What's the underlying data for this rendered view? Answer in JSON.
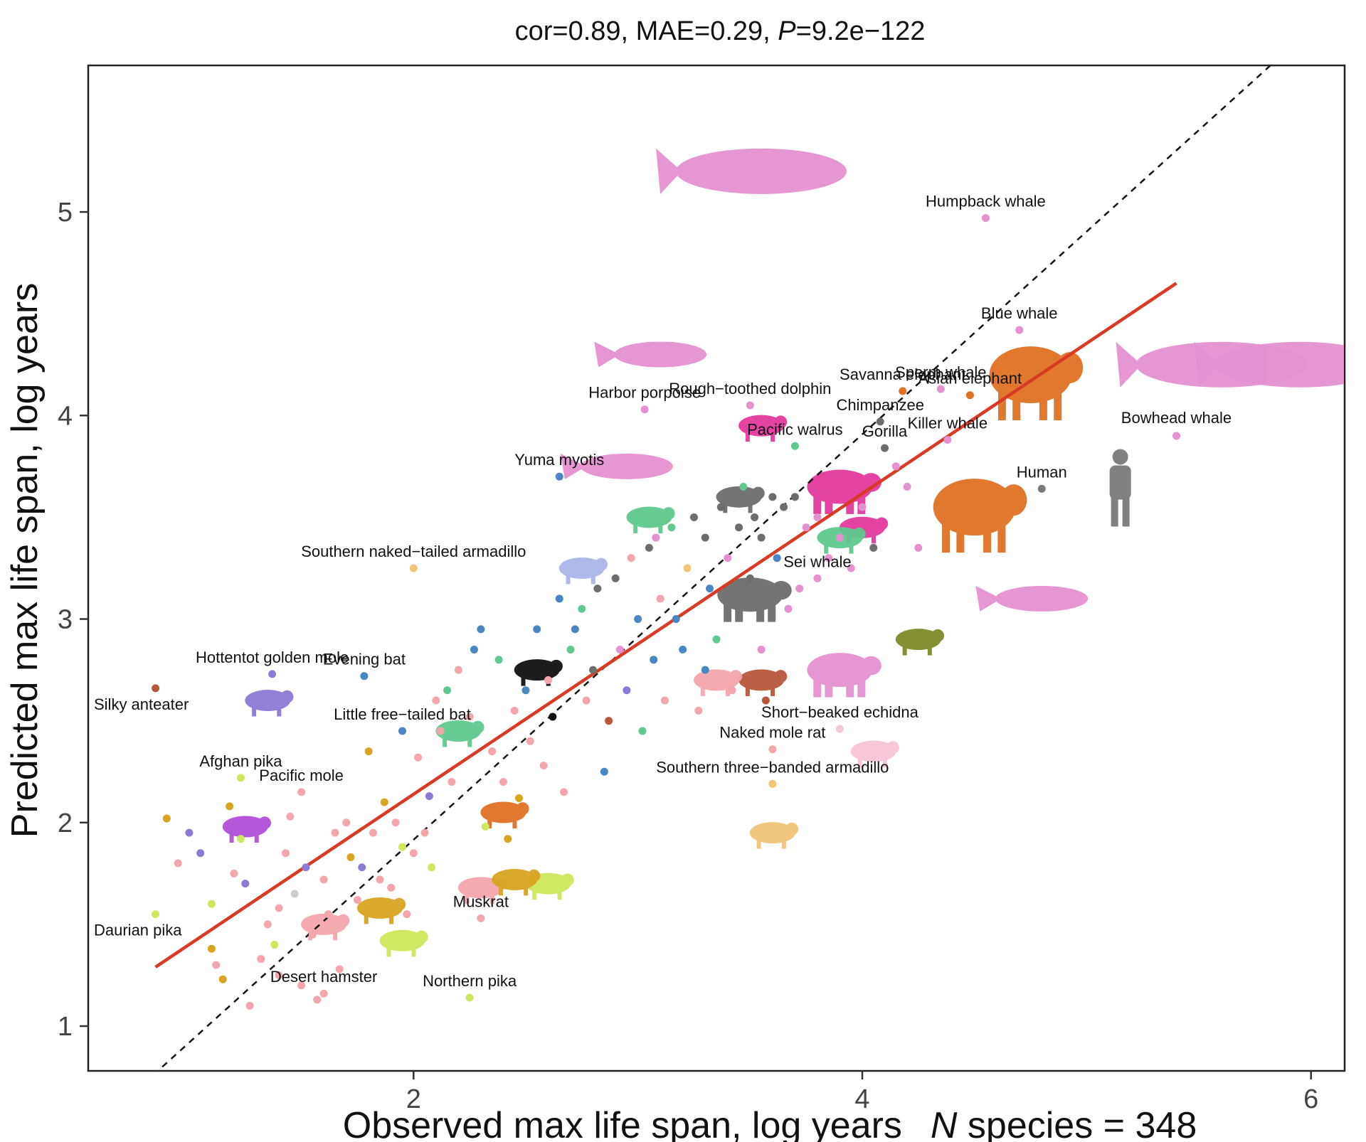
{
  "chart_data": {
    "type": "scatter",
    "title_stats": "cor=0.89, MAE=0.29, ",
    "title_p_symbol": "P",
    "title_p_value": "=9.2e−122",
    "xlabel": "Observed max life span, log years",
    "xlabel_suffix_n": "N",
    "xlabel_suffix": " species = 348",
    "ylabel": "Predicted max life span, log years",
    "xlim": [
      0.55,
      6.15
    ],
    "ylim": [
      0.78,
      5.72
    ],
    "x_ticks": [
      2,
      4,
      6
    ],
    "y_ticks": [
      1,
      2,
      3,
      4,
      5
    ],
    "grid": false,
    "identity_line": {
      "style": "dashed",
      "color": "#111111",
      "from": [
        0.8,
        0.72
      ],
      "to": [
        6.0,
        5.9
      ]
    },
    "fit_line": {
      "color": "#d93a26",
      "from": [
        0.85,
        1.29
      ],
      "to": [
        5.4,
        4.65
      ]
    },
    "labeled_points": [
      {
        "label": "Humpback whale",
        "x": 4.55,
        "y": 4.97,
        "color": "#e591cf"
      },
      {
        "label": "Blue whale",
        "x": 4.7,
        "y": 4.42,
        "color": "#e591cf"
      },
      {
        "label": "Sperm whale",
        "x": 4.35,
        "y": 4.13,
        "color": "#e591cf"
      },
      {
        "label": "Asian elephant",
        "x": 4.48,
        "y": 4.1,
        "color": "#e07125"
      },
      {
        "label": "Savanna elephant",
        "x": 4.18,
        "y": 4.12,
        "color": "#e07125"
      },
      {
        "label": "Bowhead whale",
        "x": 5.4,
        "y": 3.9,
        "color": "#e591cf"
      },
      {
        "label": "Killer whale",
        "x": 4.38,
        "y": 3.88,
        "color": "#e591cf"
      },
      {
        "label": "Human",
        "x": 4.8,
        "y": 3.64,
        "color": "#7a7a7a"
      },
      {
        "label": "Chimpanzee",
        "x": 4.08,
        "y": 3.97,
        "color": "#6d6d6d"
      },
      {
        "label": "Gorilla",
        "x": 4.1,
        "y": 3.84,
        "color": "#6d6d6d"
      },
      {
        "label": "Rough−toothed dolphin",
        "x": 3.5,
        "y": 4.05,
        "color": "#e591cf"
      },
      {
        "label": "Harbor porpoise",
        "x": 3.03,
        "y": 4.03,
        "color": "#e591cf"
      },
      {
        "label": "Pacific walrus",
        "x": 3.7,
        "y": 3.85,
        "color": "#5fc98f"
      },
      {
        "label": "Yuma myotis",
        "x": 2.65,
        "y": 3.7,
        "color": "#4a86c1"
      },
      {
        "label": "Southern naked−tailed armadillo",
        "x": 2.0,
        "y": 3.25,
        "color": "#f2c478"
      },
      {
        "label": "Sei whale",
        "x": 3.8,
        "y": 3.2,
        "color": "#e591cf"
      },
      {
        "label": "Hottentot golden mole",
        "x": 1.37,
        "y": 2.73,
        "color": "#8d7ad6"
      },
      {
        "label": "Evening bat",
        "x": 1.78,
        "y": 2.72,
        "color": "#4a86c1"
      },
      {
        "label": "Silky anteater",
        "x": 0.85,
        "y": 2.66,
        "color": "#b8583a"
      },
      {
        "label": "Little free−tailed bat",
        "x": 1.95,
        "y": 2.45,
        "color": "#4a86c1"
      },
      {
        "label": "Short−beaked echidna",
        "x": 3.9,
        "y": 2.46,
        "color": "#f5c5d8"
      },
      {
        "label": "Naked mole rat",
        "x": 3.6,
        "y": 2.36,
        "color": "#f4a6ac"
      },
      {
        "label": "Southern three−banded armadillo",
        "x": 3.6,
        "y": 2.19,
        "color": "#f2c478"
      },
      {
        "label": "Afghan pika",
        "x": 1.23,
        "y": 2.22,
        "color": "#cde85c"
      },
      {
        "label": "Pacific mole",
        "x": 1.5,
        "y": 2.15,
        "color": "#f4a6ac"
      },
      {
        "label": "Daurian pika",
        "x": 0.85,
        "y": 1.55,
        "color": "#cde85c"
      },
      {
        "label": "Muskrat",
        "x": 2.3,
        "y": 1.53,
        "color": "#f4a6ac"
      },
      {
        "label": "Desert hamster",
        "x": 1.6,
        "y": 1.16,
        "color": "#f4a6ac"
      },
      {
        "label": "Northern pika",
        "x": 2.25,
        "y": 1.14,
        "color": "#cde85c"
      }
    ],
    "unlabeled_points": [
      {
        "x": 0.9,
        "y": 2.02,
        "color": "#d9a520"
      },
      {
        "x": 0.95,
        "y": 1.8,
        "color": "#f4a6ac"
      },
      {
        "x": 1.0,
        "y": 1.95,
        "color": "#8d7ad6"
      },
      {
        "x": 1.05,
        "y": 1.85,
        "color": "#8d7ad6"
      },
      {
        "x": 1.1,
        "y": 1.6,
        "color": "#cde85c"
      },
      {
        "x": 1.1,
        "y": 1.38,
        "color": "#d9a520"
      },
      {
        "x": 1.12,
        "y": 1.3,
        "color": "#f4a6ac"
      },
      {
        "x": 1.15,
        "y": 1.23,
        "color": "#d9a520"
      },
      {
        "x": 1.18,
        "y": 2.08,
        "color": "#d9a520"
      },
      {
        "x": 1.2,
        "y": 1.75,
        "color": "#f4a6ac"
      },
      {
        "x": 1.23,
        "y": 1.92,
        "color": "#cde85c"
      },
      {
        "x": 1.25,
        "y": 1.7,
        "color": "#8d7ad6"
      },
      {
        "x": 1.27,
        "y": 1.1,
        "color": "#f4a6ac"
      },
      {
        "x": 1.32,
        "y": 1.33,
        "color": "#f4a6ac"
      },
      {
        "x": 1.35,
        "y": 1.5,
        "color": "#f4a6ac"
      },
      {
        "x": 1.38,
        "y": 1.4,
        "color": "#cde85c"
      },
      {
        "x": 1.4,
        "y": 1.58,
        "color": "#f4a6ac"
      },
      {
        "x": 1.4,
        "y": 1.25,
        "color": "#f4a6ac"
      },
      {
        "x": 1.43,
        "y": 1.85,
        "color": "#f4a6ac"
      },
      {
        "x": 1.45,
        "y": 2.03,
        "color": "#f4a6ac"
      },
      {
        "x": 1.47,
        "y": 1.65,
        "color": "#cccccc"
      },
      {
        "x": 1.5,
        "y": 1.2,
        "color": "#f4a6ac"
      },
      {
        "x": 1.52,
        "y": 1.78,
        "color": "#8d7ad6"
      },
      {
        "x": 1.55,
        "y": 1.45,
        "color": "#f4a6ac"
      },
      {
        "x": 1.57,
        "y": 1.13,
        "color": "#f4a6ac"
      },
      {
        "x": 1.6,
        "y": 1.72,
        "color": "#f4a6ac"
      },
      {
        "x": 1.62,
        "y": 1.55,
        "color": "#f4a6ac"
      },
      {
        "x": 1.65,
        "y": 1.95,
        "color": "#f4a6ac"
      },
      {
        "x": 1.67,
        "y": 1.28,
        "color": "#f4a6ac"
      },
      {
        "x": 1.7,
        "y": 2.0,
        "color": "#f4a6ac"
      },
      {
        "x": 1.72,
        "y": 1.83,
        "color": "#d9a520"
      },
      {
        "x": 1.75,
        "y": 1.62,
        "color": "#f4a6ac"
      },
      {
        "x": 1.77,
        "y": 1.78,
        "color": "#8d7ad6"
      },
      {
        "x": 1.8,
        "y": 2.35,
        "color": "#d9a520"
      },
      {
        "x": 1.82,
        "y": 1.95,
        "color": "#f4a6ac"
      },
      {
        "x": 1.85,
        "y": 1.72,
        "color": "#f4a6ac"
      },
      {
        "x": 1.87,
        "y": 2.1,
        "color": "#d9a520"
      },
      {
        "x": 1.9,
        "y": 1.68,
        "color": "#f4a6ac"
      },
      {
        "x": 1.92,
        "y": 2.0,
        "color": "#f4a6ac"
      },
      {
        "x": 1.95,
        "y": 1.88,
        "color": "#cde85c"
      },
      {
        "x": 1.97,
        "y": 1.55,
        "color": "#f4a6ac"
      },
      {
        "x": 2.0,
        "y": 1.85,
        "color": "#f4a6ac"
      },
      {
        "x": 2.02,
        "y": 2.32,
        "color": "#f4a6ac"
      },
      {
        "x": 2.05,
        "y": 1.95,
        "color": "#f4a6ac"
      },
      {
        "x": 2.07,
        "y": 2.13,
        "color": "#8d7ad6"
      },
      {
        "x": 2.08,
        "y": 1.78,
        "color": "#cde85c"
      },
      {
        "x": 2.1,
        "y": 2.6,
        "color": "#f4a6ac"
      },
      {
        "x": 2.12,
        "y": 2.45,
        "color": "#f4a6ac"
      },
      {
        "x": 2.15,
        "y": 2.65,
        "color": "#5fc98f"
      },
      {
        "x": 2.17,
        "y": 2.2,
        "color": "#f4a6ac"
      },
      {
        "x": 2.2,
        "y": 2.75,
        "color": "#f4a6ac"
      },
      {
        "x": 2.25,
        "y": 2.52,
        "color": "#f4a6ac"
      },
      {
        "x": 2.27,
        "y": 2.85,
        "color": "#4a86c1"
      },
      {
        "x": 2.3,
        "y": 2.95,
        "color": "#4a86c1"
      },
      {
        "x": 2.32,
        "y": 1.98,
        "color": "#cde85c"
      },
      {
        "x": 2.35,
        "y": 2.35,
        "color": "#f4a6ac"
      },
      {
        "x": 2.38,
        "y": 2.8,
        "color": "#5fc98f"
      },
      {
        "x": 2.4,
        "y": 2.2,
        "color": "#f4a6ac"
      },
      {
        "x": 2.42,
        "y": 1.92,
        "color": "#d9a520"
      },
      {
        "x": 2.45,
        "y": 2.55,
        "color": "#f4a6ac"
      },
      {
        "x": 2.47,
        "y": 2.12,
        "color": "#d9a520"
      },
      {
        "x": 2.5,
        "y": 2.65,
        "color": "#4a86c1"
      },
      {
        "x": 2.52,
        "y": 2.4,
        "color": "#f4a6ac"
      },
      {
        "x": 2.55,
        "y": 2.95,
        "color": "#4a86c1"
      },
      {
        "x": 2.58,
        "y": 2.28,
        "color": "#f4a6ac"
      },
      {
        "x": 2.6,
        "y": 2.7,
        "color": "#f4a6ac"
      },
      {
        "x": 2.62,
        "y": 2.52,
        "color": "#111111"
      },
      {
        "x": 2.65,
        "y": 3.1,
        "color": "#4a86c1"
      },
      {
        "x": 2.67,
        "y": 2.15,
        "color": "#f4a6ac"
      },
      {
        "x": 2.7,
        "y": 2.85,
        "color": "#5fc98f"
      },
      {
        "x": 2.72,
        "y": 2.95,
        "color": "#4a86c1"
      },
      {
        "x": 2.75,
        "y": 3.05,
        "color": "#5fc98f"
      },
      {
        "x": 2.77,
        "y": 2.6,
        "color": "#f4a6ac"
      },
      {
        "x": 2.8,
        "y": 2.75,
        "color": "#6d6d6d"
      },
      {
        "x": 2.82,
        "y": 3.15,
        "color": "#6d6d6d"
      },
      {
        "x": 2.85,
        "y": 2.25,
        "color": "#4a86c1"
      },
      {
        "x": 2.87,
        "y": 2.5,
        "color": "#b8583a"
      },
      {
        "x": 2.9,
        "y": 3.2,
        "color": "#6d6d6d"
      },
      {
        "x": 2.92,
        "y": 2.85,
        "color": "#e591cf"
      },
      {
        "x": 2.95,
        "y": 2.65,
        "color": "#8d7ad6"
      },
      {
        "x": 2.97,
        "y": 3.3,
        "color": "#f4a6ac"
      },
      {
        "x": 3.0,
        "y": 3.0,
        "color": "#4a86c1"
      },
      {
        "x": 3.02,
        "y": 2.45,
        "color": "#5fc98f"
      },
      {
        "x": 3.05,
        "y": 3.35,
        "color": "#6d6d6d"
      },
      {
        "x": 3.07,
        "y": 2.8,
        "color": "#4a86c1"
      },
      {
        "x": 3.1,
        "y": 3.1,
        "color": "#f4a6ac"
      },
      {
        "x": 3.12,
        "y": 2.6,
        "color": "#f4a6ac"
      },
      {
        "x": 3.15,
        "y": 3.45,
        "color": "#5fc98f"
      },
      {
        "x": 3.17,
        "y": 3.0,
        "color": "#4a86c1"
      },
      {
        "x": 3.2,
        "y": 2.85,
        "color": "#4a86c1"
      },
      {
        "x": 3.22,
        "y": 3.25,
        "color": "#f2c478"
      },
      {
        "x": 3.25,
        "y": 3.5,
        "color": "#6d6d6d"
      },
      {
        "x": 3.27,
        "y": 2.55,
        "color": "#f4a6ac"
      },
      {
        "x": 3.3,
        "y": 3.4,
        "color": "#6d6d6d"
      },
      {
        "x": 3.32,
        "y": 3.15,
        "color": "#4a86c1"
      },
      {
        "x": 3.35,
        "y": 2.9,
        "color": "#5fc98f"
      },
      {
        "x": 3.37,
        "y": 3.55,
        "color": "#6d6d6d"
      },
      {
        "x": 3.4,
        "y": 3.3,
        "color": "#e591cf"
      },
      {
        "x": 3.42,
        "y": 2.65,
        "color": "#f4a6ac"
      },
      {
        "x": 3.45,
        "y": 3.45,
        "color": "#6d6d6d"
      },
      {
        "x": 3.47,
        "y": 3.65,
        "color": "#5fc98f"
      },
      {
        "x": 3.5,
        "y": 3.2,
        "color": "#6d6d6d"
      },
      {
        "x": 3.52,
        "y": 3.5,
        "color": "#6d6d6d"
      },
      {
        "x": 3.55,
        "y": 3.4,
        "color": "#6d6d6d"
      },
      {
        "x": 3.57,
        "y": 2.6,
        "color": "#b8583a"
      },
      {
        "x": 3.6,
        "y": 3.6,
        "color": "#6d6d6d"
      },
      {
        "x": 3.62,
        "y": 3.3,
        "color": "#4a86c1"
      },
      {
        "x": 3.65,
        "y": 3.55,
        "color": "#6d6d6d"
      },
      {
        "x": 3.67,
        "y": 3.05,
        "color": "#e591cf"
      },
      {
        "x": 3.7,
        "y": 3.6,
        "color": "#6d6d6d"
      },
      {
        "x": 3.72,
        "y": 3.15,
        "color": "#e591cf"
      },
      {
        "x": 3.75,
        "y": 3.45,
        "color": "#e591cf"
      },
      {
        "x": 3.8,
        "y": 3.5,
        "color": "#e591cf"
      },
      {
        "x": 3.85,
        "y": 3.3,
        "color": "#e591cf"
      },
      {
        "x": 3.9,
        "y": 3.4,
        "color": "#e591cf"
      },
      {
        "x": 3.95,
        "y": 3.25,
        "color": "#e591cf"
      },
      {
        "x": 4.0,
        "y": 3.55,
        "color": "#e591cf"
      },
      {
        "x": 4.05,
        "y": 3.35,
        "color": "#6d6d6d"
      },
      {
        "x": 4.15,
        "y": 3.75,
        "color": "#e591cf"
      },
      {
        "x": 4.2,
        "y": 3.65,
        "color": "#e591cf"
      },
      {
        "x": 4.25,
        "y": 3.35,
        "color": "#e591cf"
      },
      {
        "x": 3.55,
        "y": 2.85,
        "color": "#e591cf"
      },
      {
        "x": 3.3,
        "y": 2.75,
        "color": "#4a86c1"
      },
      {
        "x": 3.08,
        "y": 3.4,
        "color": "#e591cf"
      }
    ],
    "silhouettes": [
      {
        "animal": "humpback-whale",
        "x": 3.55,
        "y": 5.2,
        "color": "#e591cf"
      },
      {
        "animal": "bowhead-whale",
        "x": 5.6,
        "y": 4.25,
        "color": "#e591cf"
      },
      {
        "animal": "blue-whale",
        "x": 5.95,
        "y": 4.25,
        "color": "#e591cf"
      },
      {
        "animal": "asian-elephant",
        "x": 4.75,
        "y": 4.2,
        "color": "#e07125"
      },
      {
        "animal": "savanna-elephant",
        "x": 4.5,
        "y": 3.55,
        "color": "#e07125"
      },
      {
        "animal": "human",
        "x": 5.15,
        "y": 3.65,
        "color": "#7a7a7a"
      },
      {
        "animal": "dolphin",
        "x": 3.1,
        "y": 4.3,
        "color": "#e591cf"
      },
      {
        "animal": "porpoise",
        "x": 2.95,
        "y": 3.75,
        "color": "#e591cf"
      },
      {
        "animal": "zebra",
        "x": 3.55,
        "y": 3.95,
        "color": "#e4399d"
      },
      {
        "animal": "rhino",
        "x": 3.9,
        "y": 3.65,
        "color": "#e4399d"
      },
      {
        "animal": "horse",
        "x": 4.0,
        "y": 3.45,
        "color": "#e4399d"
      },
      {
        "animal": "sei-whale",
        "x": 4.8,
        "y": 3.1,
        "color": "#e591cf"
      },
      {
        "animal": "seal",
        "x": 3.9,
        "y": 3.4,
        "color": "#5fc98f"
      },
      {
        "animal": "manatee",
        "x": 4.25,
        "y": 2.9,
        "color": "#7f8a2a"
      },
      {
        "animal": "cow",
        "x": 3.9,
        "y": 2.75,
        "color": "#e591cf"
      },
      {
        "animal": "echidna",
        "x": 4.05,
        "y": 2.35,
        "color": "#f5c5d8"
      },
      {
        "animal": "armadillo",
        "x": 3.6,
        "y": 1.95,
        "color": "#f2c478"
      },
      {
        "animal": "golden-mole",
        "x": 1.35,
        "y": 2.6,
        "color": "#8d7ad6"
      },
      {
        "animal": "rat",
        "x": 1.25,
        "y": 1.98,
        "color": "#b14fd6"
      },
      {
        "animal": "pika",
        "x": 2.6,
        "y": 1.7,
        "color": "#cde85c"
      },
      {
        "animal": "hamster",
        "x": 1.85,
        "y": 1.58,
        "color": "#d9a520"
      },
      {
        "animal": "mole-rat",
        "x": 2.3,
        "y": 1.68,
        "color": "#f4a6ac"
      },
      {
        "animal": "muskrat",
        "x": 2.45,
        "y": 1.72,
        "color": "#d9a520"
      },
      {
        "animal": "vole",
        "x": 1.95,
        "y": 1.42,
        "color": "#cde85c"
      },
      {
        "animal": "mouse",
        "x": 1.6,
        "y": 1.5,
        "color": "#f4a6ac"
      },
      {
        "animal": "ferret",
        "x": 2.2,
        "y": 2.45,
        "color": "#5fc98f"
      },
      {
        "animal": "badger",
        "x": 2.55,
        "y": 2.75,
        "color": "#111111"
      },
      {
        "animal": "deer",
        "x": 3.05,
        "y": 3.5,
        "color": "#5fc98f"
      },
      {
        "animal": "antelope",
        "x": 2.75,
        "y": 3.25,
        "color": "#aab6e8"
      },
      {
        "animal": "bear",
        "x": 3.5,
        "y": 3.12,
        "color": "#6d6d6d"
      },
      {
        "animal": "monkey",
        "x": 3.45,
        "y": 3.6,
        "color": "#6d6d6d"
      },
      {
        "animal": "sloth",
        "x": 3.55,
        "y": 2.7,
        "color": "#b8583a"
      },
      {
        "animal": "squirrel",
        "x": 2.4,
        "y": 2.05,
        "color": "#e07125"
      },
      {
        "animal": "pig",
        "x": 3.35,
        "y": 2.7,
        "color": "#f4a6ac"
      }
    ]
  }
}
